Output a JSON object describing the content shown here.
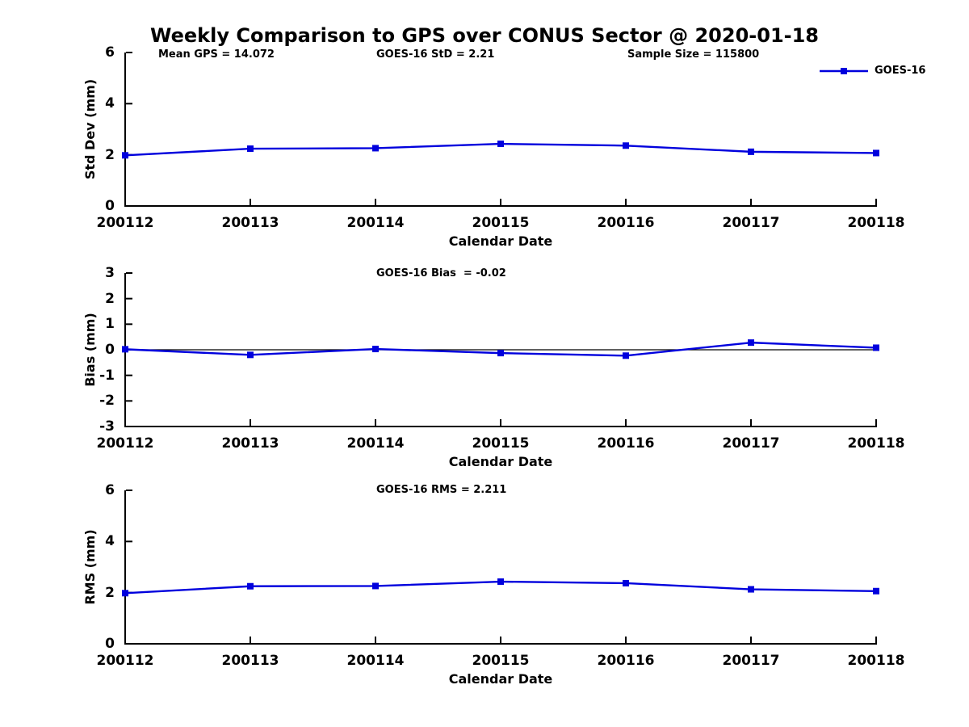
{
  "title": "Weekly Comparison to GPS over CONUS Sector @ 2020-01-18",
  "legend": {
    "label": "GOES-16",
    "color": "#0000DD",
    "marker": "square"
  },
  "chart_data": [
    {
      "type": "line",
      "name": "std-dev-vs-date",
      "annotations": [
        {
          "text": "Mean GPS = 14.072"
        },
        {
          "text": "GOES-16 StD = 2.21"
        },
        {
          "text": "Sample Size = 115800"
        }
      ],
      "categories": [
        "200112",
        "200113",
        "200114",
        "200115",
        "200116",
        "200117",
        "200118"
      ],
      "series": [
        {
          "name": "GOES-16",
          "color": "#0000DD",
          "marker": "square",
          "values": [
            1.98,
            2.24,
            2.26,
            2.43,
            2.36,
            2.12,
            2.07
          ]
        }
      ],
      "xlabel": "Calendar Date",
      "ylabel": "Std Dev (mm)",
      "ylim": [
        0,
        6
      ],
      "yticks": [
        6,
        4,
        2,
        0
      ],
      "grid": false,
      "zero_line": false,
      "legend_position": "top-right-outside"
    },
    {
      "type": "line",
      "name": "bias-vs-date",
      "annotations": [
        {
          "text": "GOES-16 Bias  = -0.02"
        }
      ],
      "categories": [
        "200112",
        "200113",
        "200114",
        "200115",
        "200116",
        "200117",
        "200118"
      ],
      "series": [
        {
          "name": "GOES-16",
          "color": "#0000DD",
          "marker": "square",
          "values": [
            0.02,
            -0.2,
            0.03,
            -0.13,
            -0.23,
            0.28,
            0.08
          ]
        }
      ],
      "xlabel": "Calendar Date",
      "ylabel": "Bias (mm)",
      "ylim": [
        -3,
        3
      ],
      "yticks": [
        3,
        2,
        1,
        0,
        -1,
        -2,
        -3
      ],
      "grid": false,
      "zero_line": true,
      "legend_position": "none"
    },
    {
      "type": "line",
      "name": "rms-vs-date",
      "annotations": [
        {
          "text": "GOES-16 RMS = 2.211"
        }
      ],
      "categories": [
        "200112",
        "200113",
        "200114",
        "200115",
        "200116",
        "200117",
        "200118"
      ],
      "series": [
        {
          "name": "GOES-16",
          "color": "#0000DD",
          "marker": "square",
          "values": [
            1.98,
            2.25,
            2.26,
            2.43,
            2.37,
            2.13,
            2.06
          ]
        }
      ],
      "xlabel": "Calendar Date",
      "ylabel": "RMS (mm)",
      "ylim": [
        0,
        6
      ],
      "yticks": [
        6,
        4,
        2,
        0
      ],
      "grid": false,
      "zero_line": false,
      "legend_position": "none"
    }
  ]
}
